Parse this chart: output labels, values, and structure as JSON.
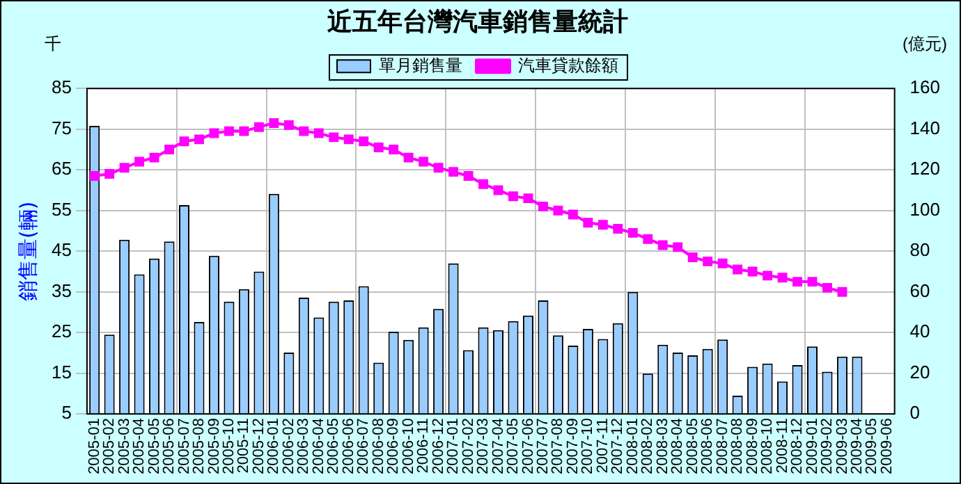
{
  "chart_data": {
    "type": "bar",
    "title": "近五年台灣汽車銷售量統計",
    "ylabel": "銷售量(輛)",
    "y2label": "(億元)",
    "annotations": [
      "千"
    ],
    "categories": [
      "2005-01",
      "2005-02",
      "2005-03",
      "2005-04",
      "2005-05",
      "2005-06",
      "2005-07",
      "2005-08",
      "2005-09",
      "2005-10",
      "2005-11",
      "2005-12",
      "2006-01",
      "2006-02",
      "2006-03",
      "2006-04",
      "2006-05",
      "2006-06",
      "2006-07",
      "2006-08",
      "2006-09",
      "2006-10",
      "2006-11",
      "2006-12",
      "2007-01",
      "2007-02",
      "2007-03",
      "2007-04",
      "2007-05",
      "2007-06",
      "2007-07",
      "2007-08",
      "2007-09",
      "2007-10",
      "2007-11",
      "2007-12",
      "2008-01",
      "2008-02",
      "2008-03",
      "2008-04",
      "2008-05",
      "2008-06",
      "2008-07",
      "2008-08",
      "2008-09",
      "2008-10",
      "2008-11",
      "2008-12",
      "2009-01",
      "2009-02",
      "2009-03",
      "2009-04",
      "2009-05",
      "2009-06"
    ],
    "series": [
      {
        "name": "單月銷售量",
        "color": "#99ccff",
        "values": [
          75.8,
          24.5,
          47.8,
          39.3,
          43.2,
          47.4,
          56.3,
          27.6,
          43.9,
          32.6,
          35.7,
          40.0,
          59.1,
          20.1,
          33.6,
          28.7,
          32.6,
          32.9,
          36.4,
          17.6,
          25.2,
          23.2,
          26.3,
          30.8,
          42.0,
          20.7,
          26.3,
          25.6,
          27.8,
          29.2,
          32.9,
          24.3,
          21.8,
          25.9,
          23.4,
          27.3,
          35.0,
          14.9,
          22.0,
          20.1,
          19.4,
          21.0,
          23.3,
          9.5,
          16.6,
          17.4,
          13.0,
          17.0,
          21.6,
          15.4,
          19.1,
          19.1,
          null,
          null
        ]
      },
      {
        "name": "汽車貸款餘額",
        "type": "line",
        "axis": "y2",
        "color": "#ff00ff",
        "marker": "square",
        "line_style": "solid",
        "values": [
          117,
          118,
          121,
          124,
          126,
          130,
          134,
          135,
          138,
          139,
          139,
          141,
          143,
          142,
          139,
          138,
          136,
          135,
          134,
          131,
          130,
          126,
          124,
          121,
          119,
          117,
          113,
          110,
          107,
          106,
          102,
          100,
          98,
          94,
          93,
          91,
          89,
          86,
          83,
          82,
          77,
          75,
          74,
          71,
          70,
          68,
          67,
          65,
          65,
          62,
          60,
          null,
          null,
          null
        ]
      }
    ],
    "ylim": [
      5,
      85
    ],
    "yticks": [
      5,
      15,
      25,
      35,
      45,
      55,
      65,
      75,
      85
    ],
    "y2lim": [
      0,
      160
    ],
    "y2ticks": [
      0,
      20,
      40,
      60,
      80,
      100,
      120,
      140,
      160
    ],
    "grid": true,
    "legend": "top"
  }
}
